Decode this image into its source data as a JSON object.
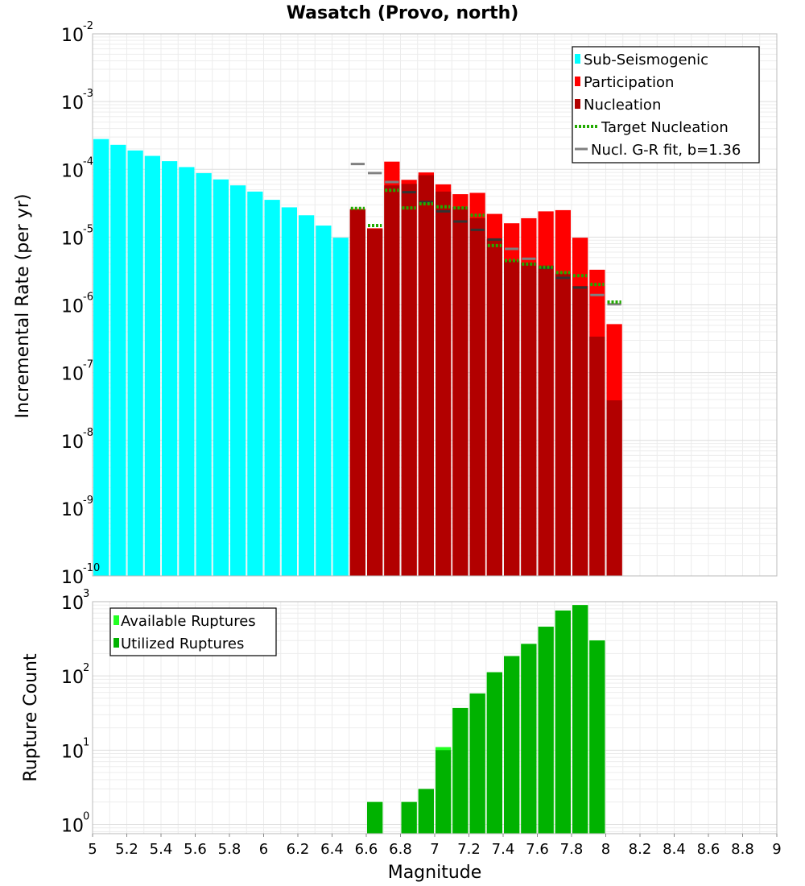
{
  "chart_data": [
    {
      "type": "bar",
      "title": "Wasatch (Provo, north)",
      "xlabel": "",
      "ylabel": "Incremental Rate (per yr)",
      "yscale": "log",
      "xlim": [
        5,
        9
      ],
      "ylim": [
        1e-10,
        0.01
      ],
      "y_ticks": [
        {
          "base": "10",
          "exp": "-10"
        },
        {
          "base": "10",
          "exp": "-9"
        },
        {
          "base": "10",
          "exp": "-8"
        },
        {
          "base": "10",
          "exp": "-7"
        },
        {
          "base": "10",
          "exp": "-6"
        },
        {
          "base": "10",
          "exp": "-5"
        },
        {
          "base": "10",
          "exp": "-4"
        },
        {
          "base": "10",
          "exp": "-3"
        },
        {
          "base": "10",
          "exp": "-2"
        }
      ],
      "bin_width": 0.1,
      "legend_position": "top-right",
      "legend": [
        "Sub-Seismogenic",
        "Participation",
        "Nucleation",
        "Target Nucleation",
        "Nucl. G-R fit, b=1.36"
      ],
      "colors": {
        "sub": "#00ffff",
        "participation": "#ff0000",
        "nucleation": "#b20000",
        "target": "#22aa00",
        "fit": "#808080",
        "fit_dark": "#333333"
      },
      "series": [
        {
          "name": "Sub-Seismogenic",
          "style": "bar",
          "x": [
            5.05,
            5.15,
            5.25,
            5.35,
            5.45,
            5.55,
            5.65,
            5.75,
            5.85,
            5.95,
            6.05,
            6.15,
            6.25,
            6.35,
            6.45
          ],
          "values": [
            0.00028,
            0.00023,
            0.00019,
            0.000158,
            0.000132,
            0.000108,
            8.8e-05,
            7.1e-05,
            5.8e-05,
            4.7e-05,
            3.55e-05,
            2.75e-05,
            2.1e-05,
            1.48e-05,
            9.8e-06
          ]
        },
        {
          "name": "Participation",
          "style": "bar",
          "x": [
            6.55,
            6.65,
            6.75,
            6.85,
            6.95,
            7.05,
            7.15,
            7.25,
            7.35,
            7.45,
            7.55,
            7.65,
            7.75,
            7.85,
            7.95,
            8.05
          ],
          "values": [
            2.6e-05,
            1.35e-05,
            0.00013,
            7e-05,
            9e-05,
            6e-05,
            4.3e-05,
            4.5e-05,
            2.2e-05,
            1.6e-05,
            1.9e-05,
            2.4e-05,
            2.5e-05,
            9.8e-06,
            3.3e-06,
            5.2e-07
          ]
        },
        {
          "name": "Nucleation",
          "style": "bar",
          "x": [
            6.55,
            6.65,
            6.75,
            6.85,
            6.95,
            7.05,
            7.15,
            7.25,
            7.35,
            7.45,
            7.55,
            7.65,
            7.75,
            7.85,
            7.95,
            8.05
          ],
          "values": [
            2.55e-05,
            1.32e-05,
            5.8e-05,
            6.1e-05,
            8.2e-05,
            4.7e-05,
            2.8e-05,
            1.9e-05,
            9.5e-06,
            4.5e-06,
            4.2e-06,
            3.8e-06,
            2.9e-06,
            1.9e-06,
            3.4e-07,
            3.9e-08
          ]
        },
        {
          "name": "Target Nucleation",
          "style": "dotted-step",
          "x": [
            6.55,
            6.65,
            6.75,
            6.85,
            6.95,
            7.05,
            7.15,
            7.25,
            7.35,
            7.45,
            7.55,
            7.65,
            7.75,
            7.85,
            7.95,
            8.05
          ],
          "values": [
            2.65e-05,
            1.48e-05,
            4.9e-05,
            2.7e-05,
            3.1e-05,
            2.8e-05,
            2.7e-05,
            2.1e-05,
            7.5e-06,
            4.5e-06,
            4e-06,
            3.6e-06,
            3e-06,
            2.7e-06,
            2e-06,
            1.1e-06
          ]
        },
        {
          "name": "Nucl. G-R fit, b=1.36",
          "style": "step",
          "x": [
            6.55,
            6.65,
            6.75,
            6.85,
            6.95,
            7.05,
            7.15,
            7.25,
            7.35,
            7.45,
            7.55,
            7.65,
            7.75,
            7.85,
            7.95,
            8.05
          ],
          "values": [
            0.00012,
            8.8e-05,
            6.5e-05,
            4.6e-05,
            3.3e-05,
            2.4e-05,
            1.7e-05,
            1.28e-05,
            9.2e-06,
            6.7e-06,
            4.8e-06,
            3.5e-06,
            2.5e-06,
            1.8e-06,
            1.4e-06,
            1.02e-06
          ]
        }
      ]
    },
    {
      "type": "bar",
      "title": "",
      "xlabel": "Magnitude",
      "ylabel": "Rupture Count",
      "yscale": "log",
      "xlim": [
        5,
        9
      ],
      "ylim": [
        0.75,
        1000
      ],
      "x_ticks": [
        "5",
        "5.2",
        "5.4",
        "5.6",
        "5.8",
        "6",
        "6.2",
        "6.4",
        "6.6",
        "6.8",
        "7",
        "7.2",
        "7.4",
        "7.6",
        "7.8",
        "8",
        "8.2",
        "8.4",
        "8.6",
        "8.8",
        "9"
      ],
      "y_ticks": [
        {
          "base": "10",
          "exp": "0"
        },
        {
          "base": "10",
          "exp": "1"
        },
        {
          "base": "10",
          "exp": "2"
        },
        {
          "base": "10",
          "exp": "3"
        }
      ],
      "bin_width": 0.1,
      "legend_position": "top-left",
      "legend": [
        "Available Ruptures",
        "Utilized Ruptures"
      ],
      "colors": {
        "available": "#22ff22",
        "utilized": "#00b200"
      },
      "series": [
        {
          "name": "Available Ruptures",
          "style": "bar",
          "x": [
            6.65,
            6.85,
            6.95,
            7.05,
            7.15,
            7.25,
            7.35,
            7.45,
            7.55,
            7.65,
            7.75,
            7.85,
            7.95
          ],
          "values": [
            2,
            2,
            3,
            11,
            37,
            58,
            112,
            185,
            270,
            460,
            760,
            900,
            300
          ]
        },
        {
          "name": "Utilized Ruptures",
          "style": "bar",
          "x": [
            6.65,
            6.85,
            6.95,
            7.05,
            7.15,
            7.25,
            7.35,
            7.45,
            7.55,
            7.65,
            7.75,
            7.85,
            7.95
          ],
          "values": [
            2,
            2,
            3,
            10,
            37,
            58,
            112,
            185,
            270,
            460,
            760,
            900,
            300
          ]
        }
      ]
    }
  ]
}
